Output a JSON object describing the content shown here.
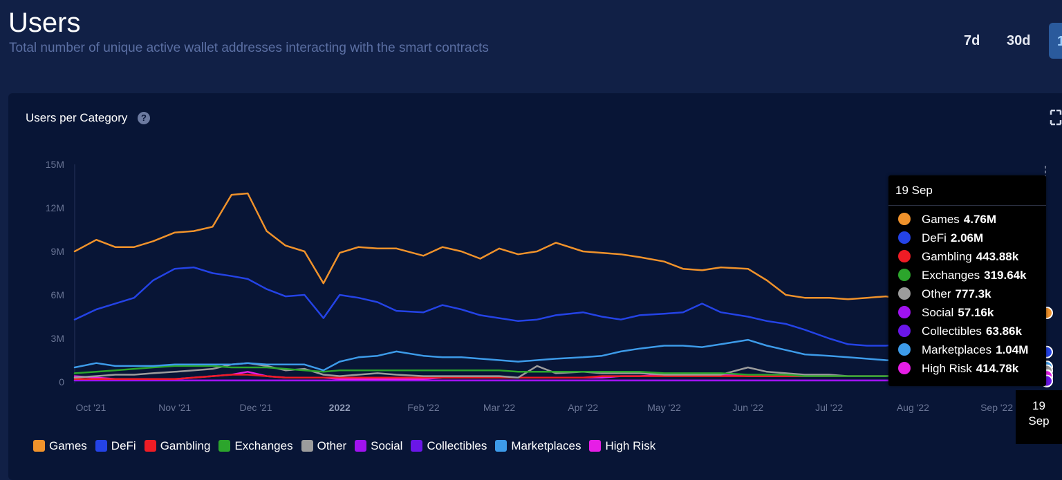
{
  "header": {
    "title": "Users",
    "subtitle": "Total number of unique active wallet addresses interacting with the smart contracts",
    "range_buttons": [
      "7d",
      "30d",
      "1"
    ]
  },
  "card": {
    "title": "Users per Category",
    "help_glyph": "?"
  },
  "tooltip": {
    "date": "19 Sep",
    "rows": [
      {
        "name": "Games",
        "value": "4.76M"
      },
      {
        "name": "DeFi",
        "value": "2.06M"
      },
      {
        "name": "Gambling",
        "value": "443.88k"
      },
      {
        "name": "Exchanges",
        "value": "319.64k"
      },
      {
        "name": "Other",
        "value": "777.3k"
      },
      {
        "name": "Social",
        "value": "57.16k"
      },
      {
        "name": "Collectibles",
        "value": "63.86k"
      },
      {
        "name": "Marketplaces",
        "value": "1.04M"
      },
      {
        "name": "High Risk",
        "value": "414.78k"
      }
    ]
  },
  "date_tag": {
    "day": "19",
    "month": "Sep"
  },
  "colors": {
    "Games": "#f0922b",
    "DeFi": "#2443e6",
    "Gambling": "#ee1c25",
    "Exchanges": "#2ca52c",
    "Other": "#9c9c9c",
    "Social": "#a012f0",
    "Collectibles": "#6a16e8",
    "Marketplaces": "#3d9be9",
    "High Risk": "#e61ee6"
  },
  "chart_data": {
    "type": "line",
    "title": "Users per Category",
    "x": [
      "2021-09-25",
      "2021-10-03",
      "2021-10-10",
      "2021-10-17",
      "2021-10-24",
      "2021-11-01",
      "2021-11-08",
      "2021-11-15",
      "2021-11-22",
      "2021-11-28",
      "2021-12-05",
      "2021-12-12",
      "2021-12-19",
      "2021-12-26",
      "2022-01-01",
      "2022-01-08",
      "2022-01-15",
      "2022-01-22",
      "2022-02-01",
      "2022-02-08",
      "2022-02-15",
      "2022-02-22",
      "2022-03-01",
      "2022-03-08",
      "2022-03-15",
      "2022-03-22",
      "2022-04-01",
      "2022-04-08",
      "2022-04-15",
      "2022-04-22",
      "2022-05-01",
      "2022-05-08",
      "2022-05-15",
      "2022-05-22",
      "2022-06-01",
      "2022-06-08",
      "2022-06-15",
      "2022-06-22",
      "2022-07-01",
      "2022-07-08",
      "2022-07-15",
      "2022-07-22",
      "2022-08-01",
      "2022-08-08",
      "2022-08-15",
      "2022-08-22",
      "2022-09-01",
      "2022-09-08",
      "2022-09-15",
      "2022-09-19"
    ],
    "x_ticks": [
      {
        "date": "2021-10-01",
        "label": "Oct '21",
        "bold": false
      },
      {
        "date": "2021-11-01",
        "label": "Nov '21",
        "bold": false
      },
      {
        "date": "2021-12-01",
        "label": "Dec '21",
        "bold": false
      },
      {
        "date": "2022-01-01",
        "label": "2022",
        "bold": true
      },
      {
        "date": "2022-02-01",
        "label": "Feb '22",
        "bold": false
      },
      {
        "date": "2022-03-01",
        "label": "Mar '22",
        "bold": false
      },
      {
        "date": "2022-04-01",
        "label": "Apr '22",
        "bold": false
      },
      {
        "date": "2022-05-01",
        "label": "May '22",
        "bold": false
      },
      {
        "date": "2022-06-01",
        "label": "Jun '22",
        "bold": false
      },
      {
        "date": "2022-07-01",
        "label": "Jul '22",
        "bold": false
      },
      {
        "date": "2022-08-01",
        "label": "Aug '22",
        "bold": false
      },
      {
        "date": "2022-09-01",
        "label": "Sep '22",
        "bold": false
      }
    ],
    "y_ticks": [
      {
        "value": 0,
        "label": "0"
      },
      {
        "value": 3000000,
        "label": "3M"
      },
      {
        "value": 6000000,
        "label": "6M"
      },
      {
        "value": 9000000,
        "label": "9M"
      },
      {
        "value": 12000000,
        "label": "12M"
      },
      {
        "value": 15000000,
        "label": "15M"
      }
    ],
    "ylim": [
      0,
      15000000
    ],
    "grid": false,
    "legend_position": "bottom-left",
    "series": [
      {
        "name": "Games",
        "values": [
          9000000,
          9800000,
          9300000,
          9300000,
          9700000,
          10300000,
          10400000,
          10700000,
          12900000,
          13000000,
          10400000,
          9400000,
          9000000,
          6800000,
          8900000,
          9300000,
          9200000,
          9200000,
          8700000,
          9300000,
          9000000,
          8500000,
          9200000,
          8800000,
          9000000,
          9600000,
          9000000,
          8900000,
          8800000,
          8600000,
          8300000,
          7800000,
          7700000,
          7900000,
          7800000,
          7000000,
          6000000,
          5800000,
          5800000,
          5700000,
          5800000,
          5900000,
          5600000,
          5800000,
          5800000,
          5800000,
          6000000,
          6200000,
          6000000,
          4760000
        ]
      },
      {
        "name": "DeFi",
        "values": [
          4300000,
          5000000,
          5400000,
          5800000,
          7000000,
          7800000,
          7900000,
          7500000,
          7300000,
          7100000,
          6400000,
          5900000,
          6000000,
          4400000,
          6000000,
          5800000,
          5500000,
          4900000,
          4800000,
          5300000,
          5000000,
          4600000,
          4400000,
          4200000,
          4300000,
          4600000,
          4800000,
          4500000,
          4300000,
          4600000,
          4700000,
          4800000,
          5400000,
          4800000,
          4500000,
          4200000,
          4000000,
          3600000,
          3000000,
          2600000,
          2500000,
          2500000,
          2700000,
          2600000,
          2500000,
          2400000,
          2300000,
          2200000,
          2100000,
          2060000
        ]
      },
      {
        "name": "Marketplaces",
        "values": [
          1000000,
          1300000,
          1100000,
          1100000,
          1100000,
          1200000,
          1200000,
          1200000,
          1200000,
          1300000,
          1200000,
          1200000,
          1200000,
          800000,
          1400000,
          1700000,
          1800000,
          2100000,
          1800000,
          1700000,
          1700000,
          1600000,
          1500000,
          1400000,
          1500000,
          1600000,
          1700000,
          1800000,
          2100000,
          2300000,
          2500000,
          2500000,
          2400000,
          2600000,
          2900000,
          2500000,
          2200000,
          1900000,
          1800000,
          1700000,
          1600000,
          1500000,
          1400000,
          1300000,
          1200000,
          1200000,
          1100000,
          1100000,
          1100000,
          1040000
        ]
      },
      {
        "name": "Exchanges",
        "values": [
          600000,
          700000,
          800000,
          900000,
          1000000,
          1100000,
          1100000,
          1100000,
          1000000,
          1000000,
          1000000,
          900000,
          800000,
          700000,
          800000,
          800000,
          800000,
          800000,
          800000,
          800000,
          800000,
          800000,
          800000,
          700000,
          700000,
          700000,
          700000,
          700000,
          700000,
          700000,
          600000,
          600000,
          600000,
          600000,
          500000,
          500000,
          500000,
          400000,
          400000,
          400000,
          400000,
          400000,
          400000,
          400000,
          350000,
          350000,
          320000,
          330000,
          320000,
          319640
        ]
      },
      {
        "name": "Other",
        "values": [
          300000,
          400000,
          500000,
          500000,
          600000,
          700000,
          800000,
          900000,
          1200000,
          1300000,
          1100000,
          800000,
          900000,
          500000,
          400000,
          500000,
          600000,
          500000,
          400000,
          400000,
          400000,
          400000,
          400000,
          300000,
          1100000,
          600000,
          700000,
          600000,
          600000,
          600000,
          500000,
          500000,
          500000,
          500000,
          1000000,
          700000,
          600000,
          500000,
          500000,
          400000,
          400000,
          400000,
          500000,
          600000,
          700000,
          700000,
          700000,
          800000,
          780000,
          777300
        ]
      },
      {
        "name": "Gambling",
        "values": [
          200000,
          200000,
          200000,
          200000,
          200000,
          200000,
          300000,
          400000,
          500000,
          500000,
          400000,
          300000,
          300000,
          300000,
          300000,
          300000,
          300000,
          300000,
          300000,
          300000,
          300000,
          300000,
          300000,
          300000,
          300000,
          300000,
          300000,
          400000,
          400000,
          400000,
          400000,
          400000,
          400000,
          400000,
          400000,
          400000,
          400000,
          400000,
          400000,
          400000,
          400000,
          400000,
          400000,
          400000,
          400000,
          400000,
          450000,
          450000,
          440000,
          443880
        ]
      },
      {
        "name": "High Risk",
        "values": [
          400000,
          300000,
          200000,
          200000,
          200000,
          200000,
          300000,
          400000,
          500000,
          700000,
          400000,
          300000,
          300000,
          300000,
          200000,
          200000,
          200000,
          200000,
          200000,
          300000,
          300000,
          300000,
          300000,
          300000,
          300000,
          300000,
          300000,
          300000,
          400000,
          400000,
          500000,
          500000,
          500000,
          500000,
          400000,
          400000,
          400000,
          400000,
          400000,
          400000,
          400000,
          400000,
          400000,
          400000,
          400000,
          400000,
          400000,
          400000,
          420000,
          414780
        ]
      },
      {
        "name": "Social",
        "values": [
          100000,
          100000,
          100000,
          100000,
          100000,
          100000,
          100000,
          100000,
          100000,
          100000,
          100000,
          100000,
          100000,
          100000,
          100000,
          100000,
          100000,
          100000,
          100000,
          100000,
          100000,
          100000,
          100000,
          100000,
          100000,
          100000,
          100000,
          100000,
          100000,
          100000,
          100000,
          100000,
          100000,
          100000,
          100000,
          100000,
          100000,
          100000,
          100000,
          100000,
          100000,
          100000,
          100000,
          100000,
          60000,
          60000,
          60000,
          60000,
          57000,
          57160
        ]
      },
      {
        "name": "Collectibles",
        "values": [
          100000,
          100000,
          100000,
          100000,
          100000,
          100000,
          100000,
          100000,
          100000,
          100000,
          100000,
          100000,
          100000,
          100000,
          100000,
          100000,
          100000,
          100000,
          100000,
          100000,
          100000,
          100000,
          100000,
          100000,
          100000,
          100000,
          100000,
          100000,
          100000,
          100000,
          100000,
          100000,
          100000,
          100000,
          100000,
          100000,
          100000,
          100000,
          100000,
          100000,
          100000,
          100000,
          100000,
          100000,
          70000,
          70000,
          65000,
          65000,
          64000,
          63860
        ]
      }
    ],
    "legend": [
      "Games",
      "DeFi",
      "Gambling",
      "Exchanges",
      "Other",
      "Social",
      "Collectibles",
      "Marketplaces",
      "High Risk"
    ]
  }
}
